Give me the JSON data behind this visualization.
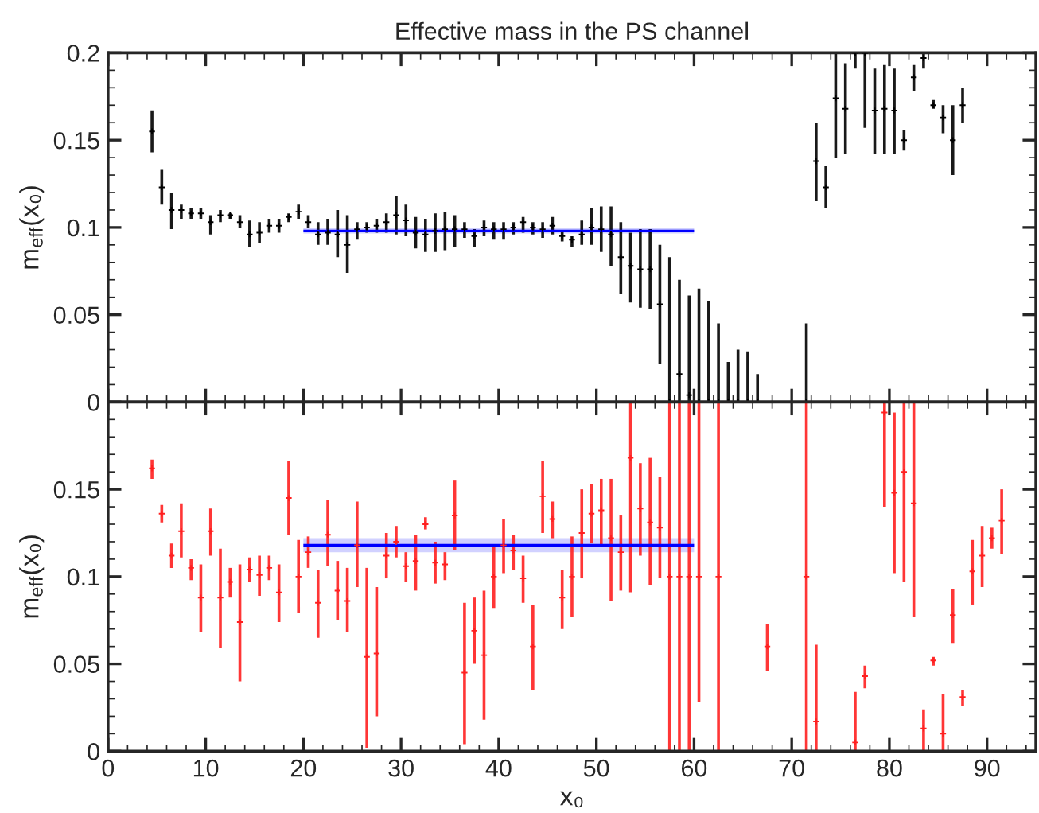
{
  "chart_data": [
    {
      "type": "scatter",
      "title": "Effective mass in the PS channel",
      "ylabel": "m$_{eff}$(x₀)",
      "xlim": [
        0,
        95
      ],
      "xticks": [
        0,
        10,
        20,
        30,
        40,
        50,
        60,
        70,
        80,
        90
      ],
      "ylim": [
        0,
        0.2
      ],
      "yticks": [
        0,
        0.05,
        0.1,
        0.15,
        0.2
      ],
      "tick_labels": "y",
      "grid": false,
      "legend": false,
      "series": [
        {
          "color": "#000000",
          "marker": "cross",
          "x": [
            4.5,
            5.5,
            6.5,
            7.5,
            8.5,
            9.5,
            10.5,
            11.5,
            12.5,
            13.5,
            14.5,
            15.5,
            16.5,
            17.5,
            18.5,
            19.5,
            20.5,
            21.5,
            22.5,
            23.5,
            24.5,
            25.5,
            26.5,
            27.5,
            28.5,
            29.5,
            30.5,
            31.5,
            32.5,
            33.5,
            34.5,
            35.5,
            36.5,
            37.5,
            38.5,
            39.5,
            40.5,
            41.5,
            42.5,
            43.5,
            44.5,
            45.5,
            46.5,
            47.5,
            48.5,
            49.5,
            50.5,
            51.5,
            52.5,
            53.5,
            54.5,
            55.5,
            56.5,
            57.5,
            58.5,
            59.5,
            60.5,
            61.5,
            62.5,
            63.5,
            64.5,
            65.5,
            66.5,
            71.5,
            72.5,
            73.5,
            74.5,
            75.5,
            76.5,
            77.5,
            78.5,
            79.5,
            80.5,
            81.5,
            82.5,
            83.5,
            84.5,
            85.5,
            86.5,
            87.5
          ],
          "values": [
            0.155,
            0.123,
            0.11,
            0.11,
            0.108,
            0.108,
            0.103,
            0.107,
            0.107,
            0.103,
            0.096,
            0.097,
            0.101,
            0.101,
            0.106,
            0.109,
            0.103,
            0.096,
            0.097,
            0.096,
            0.09,
            0.099,
            0.1,
            0.101,
            0.103,
            0.107,
            0.104,
            0.097,
            0.096,
            0.098,
            0.099,
            0.099,
            0.099,
            0.095,
            0.1,
            0.099,
            0.099,
            0.1,
            0.103,
            0.1,
            0.099,
            0.101,
            0.095,
            0.093,
            0.096,
            0.1,
            0.099,
            0.096,
            0.083,
            0.078,
            0.076,
            0.076,
            0.056,
            0,
            0.016,
            0.004,
            0,
            0,
            0,
            0,
            0,
            0,
            0,
            0,
            0.138,
            0.123,
            0.174,
            0.168,
            0.2,
            0.2,
            0.167,
            0.168,
            0.167,
            0.15,
            0.186,
            0.197,
            0.17,
            0.163,
            0.15,
            0.17
          ],
          "errors": [
            [
              0.143,
              0.167
            ],
            [
              0.113,
              0.133
            ],
            [
              0.099,
              0.12
            ],
            [
              0.105,
              0.113
            ],
            [
              0.105,
              0.111
            ],
            [
              0.105,
              0.111
            ],
            [
              0.096,
              0.107
            ],
            [
              0.103,
              0.11
            ],
            [
              0.105,
              0.108
            ],
            [
              0.1,
              0.107
            ],
            [
              0.089,
              0.104
            ],
            [
              0.091,
              0.103
            ],
            [
              0.097,
              0.105
            ],
            [
              0.097,
              0.105
            ],
            [
              0.103,
              0.108
            ],
            [
              0.105,
              0.113
            ],
            [
              0.1,
              0.107
            ],
            [
              0.09,
              0.103
            ],
            [
              0.09,
              0.105
            ],
            [
              0.083,
              0.11
            ],
            [
              0.074,
              0.107
            ],
            [
              0.093,
              0.103
            ],
            [
              0.097,
              0.103
            ],
            [
              0.097,
              0.105
            ],
            [
              0.097,
              0.108
            ],
            [
              0.096,
              0.118
            ],
            [
              0.095,
              0.113
            ],
            [
              0.088,
              0.106
            ],
            [
              0.086,
              0.105
            ],
            [
              0.086,
              0.108
            ],
            [
              0.087,
              0.109
            ],
            [
              0.089,
              0.107
            ],
            [
              0.094,
              0.103
            ],
            [
              0.089,
              0.099
            ],
            [
              0.095,
              0.104
            ],
            [
              0.093,
              0.103
            ],
            [
              0.093,
              0.103
            ],
            [
              0.096,
              0.103
            ],
            [
              0.097,
              0.106
            ],
            [
              0.096,
              0.103
            ],
            [
              0.094,
              0.103
            ],
            [
              0.096,
              0.106
            ],
            [
              0.092,
              0.098
            ],
            [
              0.089,
              0.095
            ],
            [
              0.09,
              0.104
            ],
            [
              0.09,
              0.111
            ],
            [
              0.086,
              0.112
            ],
            [
              0.078,
              0.112
            ],
            [
              0.062,
              0.103
            ],
            [
              0.057,
              0.097
            ],
            [
              0.054,
              0.099
            ],
            [
              0.053,
              0.099
            ],
            [
              0.022,
              0.09
            ],
            [
              0,
              0.083
            ],
            [
              0,
              0.07
            ],
            [
              0,
              0.061
            ],
            [
              0,
              0.065
            ],
            [
              0,
              0.058
            ],
            [
              0,
              0.045
            ],
            [
              0,
              0.023
            ],
            [
              0,
              0.03
            ],
            [
              0,
              0.029
            ],
            [
              0,
              0.016
            ],
            [
              0,
              0.045
            ],
            [
              0.115,
              0.16
            ],
            [
              0.111,
              0.135
            ],
            [
              0.14,
              0.2
            ],
            [
              0.142,
              0.194
            ],
            [
              0.191,
              0.2
            ],
            [
              0.157,
              0.2
            ],
            [
              0.142,
              0.191
            ],
            [
              0.142,
              0.193
            ],
            [
              0.142,
              0.191
            ],
            [
              0.144,
              0.156
            ],
            [
              0.178,
              0.193
            ],
            [
              0.191,
              0.2
            ],
            [
              0.168,
              0.173
            ],
            [
              0.154,
              0.17
            ],
            [
              0.13,
              0.17
            ],
            [
              0.16,
              0.18
            ]
          ]
        },
        {
          "type": "line",
          "color": "#0000ff",
          "x": [
            20,
            60
          ],
          "values": [
            0.098,
            0.098
          ],
          "lower": [
            0.0965,
            0.0965
          ],
          "upper": [
            0.0995,
            0.0995
          ]
        }
      ]
    },
    {
      "type": "scatter",
      "xlabel": "x₀",
      "ylabel": "m$_{eff}$(x₀)",
      "xlim": [
        0,
        95
      ],
      "xticks": [
        0,
        10,
        20,
        30,
        40,
        50,
        60,
        70,
        80,
        90
      ],
      "ylim": [
        0,
        0.2
      ],
      "yticks": [
        0,
        0.05,
        0.1,
        0.15,
        {
          "value": 0.2,
          "label": null
        }
      ],
      "grid": false,
      "legend": false,
      "series": [
        {
          "color": "#ff2020",
          "marker": "cross",
          "x": [
            4.5,
            5.5,
            6.5,
            7.5,
            8.5,
            9.5,
            10.5,
            11.5,
            12.5,
            13.5,
            14.5,
            15.5,
            16.5,
            17.5,
            18.5,
            19.5,
            20.5,
            21.5,
            22.5,
            23.5,
            24.5,
            25.5,
            26.5,
            27.5,
            28.5,
            29.5,
            30.5,
            31.5,
            32.5,
            33.5,
            34.5,
            35.5,
            36.5,
            37.5,
            38.5,
            39.5,
            40.5,
            41.5,
            42.5,
            43.5,
            44.5,
            45.5,
            46.5,
            47.5,
            48.5,
            49.5,
            50.5,
            51.5,
            52.5,
            53.5,
            54.5,
            55.5,
            56.5,
            57.5,
            58.5,
            59.5,
            60.5,
            62.5,
            67.5,
            71.5,
            72.5,
            76.5,
            77.5,
            79.5,
            80.5,
            81.5,
            82.5,
            83.5,
            84.5,
            85.5,
            86.5,
            87.5,
            88.5,
            89.5,
            90.5,
            91.5
          ],
          "values": [
            0.162,
            0.136,
            0.112,
            0.126,
            0.105,
            0.088,
            0.126,
            0.088,
            0.097,
            0.074,
            0.104,
            0.101,
            0.105,
            0.091,
            0.145,
            0.1,
            0.114,
            0.085,
            0.124,
            0.092,
            0.086,
            0.118,
            0.054,
            0.056,
            0.112,
            0.12,
            0.106,
            0.109,
            0.13,
            0.108,
            0.107,
            0.135,
            0.045,
            0.069,
            0.055,
            0.1,
            0.118,
            0.115,
            0.099,
            0.06,
            0.146,
            0.133,
            0.088,
            0.1,
            0.125,
            0.136,
            0.138,
            0.122,
            0.114,
            0.168,
            0.139,
            0.131,
            0.128,
            0.1,
            0.1,
            0.1,
            0.1,
            0.1,
            0.06,
            0.1,
            0.017,
            0.005,
            0.043,
            0.194,
            0.148,
            0.16,
            0.142,
            0.013,
            0.052,
            0.01,
            0.078,
            0.031,
            0.103,
            0.112,
            0.122,
            0.132
          ],
          "errors": [
            [
              0.156,
              0.167
            ],
            [
              0.131,
              0.141
            ],
            [
              0.105,
              0.119
            ],
            [
              0.111,
              0.142
            ],
            [
              0.098,
              0.11
            ],
            [
              0.068,
              0.107
            ],
            [
              0.112,
              0.139
            ],
            [
              0.059,
              0.116
            ],
            [
              0.088,
              0.105
            ],
            [
              0.04,
              0.107
            ],
            [
              0.097,
              0.111
            ],
            [
              0.089,
              0.112
            ],
            [
              0.098,
              0.112
            ],
            [
              0.074,
              0.107
            ],
            [
              0.124,
              0.166
            ],
            [
              0.079,
              0.121
            ],
            [
              0.105,
              0.123
            ],
            [
              0.065,
              0.104
            ],
            [
              0.106,
              0.144
            ],
            [
              0.075,
              0.109
            ],
            [
              0.068,
              0.105
            ],
            [
              0.094,
              0.143
            ],
            [
              0.002,
              0.105
            ],
            [
              0.02,
              0.094
            ],
            [
              0.099,
              0.125
            ],
            [
              0.111,
              0.129
            ],
            [
              0.097,
              0.114
            ],
            [
              0.092,
              0.124
            ],
            [
              0.127,
              0.134
            ],
            [
              0.096,
              0.12
            ],
            [
              0.098,
              0.114
            ],
            [
              0.115,
              0.155
            ],
            [
              0.004,
              0.085
            ],
            [
              0.05,
              0.088
            ],
            [
              0.018,
              0.092
            ],
            [
              0.082,
              0.118
            ],
            [
              0.102,
              0.133
            ],
            [
              0.104,
              0.124
            ],
            [
              0.085,
              0.112
            ],
            [
              0.035,
              0.084
            ],
            [
              0.125,
              0.166
            ],
            [
              0.122,
              0.143
            ],
            [
              0.07,
              0.104
            ],
            [
              0.077,
              0.123
            ],
            [
              0.099,
              0.15
            ],
            [
              0.119,
              0.153
            ],
            [
              0.118,
              0.156
            ],
            [
              0.086,
              0.156
            ],
            [
              0.092,
              0.135
            ],
            [
              0.091,
              0.2
            ],
            [
              0.112,
              0.165
            ],
            [
              0.095,
              0.168
            ],
            [
              0.099,
              0.157
            ],
            [
              0,
              0.2
            ],
            [
              0,
              0.2
            ],
            [
              0,
              0.2
            ],
            [
              0.028,
              0.2
            ],
            [
              0,
              0.2
            ],
            [
              0.046,
              0.073
            ],
            [
              0,
              0.2
            ],
            [
              0,
              0.061
            ],
            [
              0,
              0.034
            ],
            [
              0.036,
              0.049
            ],
            [
              0.14,
              0.2
            ],
            [
              0.102,
              0.194
            ],
            [
              0.097,
              0.2
            ],
            [
              0.077,
              0.2
            ],
            [
              0,
              0.024
            ],
            [
              0.049,
              0.054
            ],
            [
              0,
              0.033
            ],
            [
              0.062,
              0.093
            ],
            [
              0.026,
              0.035
            ],
            [
              0.084,
              0.121
            ],
            [
              0.094,
              0.129
            ],
            [
              0.116,
              0.128
            ],
            [
              0.113,
              0.15
            ]
          ]
        },
        {
          "type": "line",
          "color": "#0000ff",
          "x": [
            20,
            60
          ],
          "values": [
            0.118,
            0.118
          ],
          "lower": [
            0.114,
            0.114
          ],
          "upper": [
            0.122,
            0.122
          ]
        }
      ]
    }
  ]
}
